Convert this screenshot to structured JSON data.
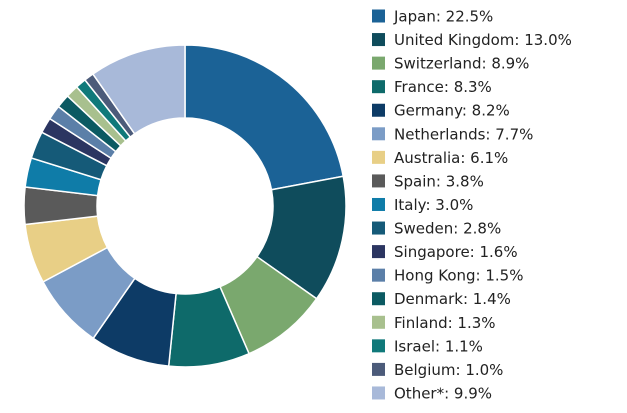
{
  "chart_data": {
    "type": "donut",
    "values": [
      22.5,
      13.0,
      8.9,
      8.3,
      8.2,
      7.7,
      6.1,
      3.8,
      3.0,
      2.8,
      1.6,
      1.5,
      1.4,
      1.3,
      1.1,
      1.0,
      9.9
    ],
    "value_labels": [
      "Japan: 22.5%",
      "United Kingdom: 13.0%",
      "Switzerland: 8.9%",
      "France: 8.3%",
      "Germany: 8.2%",
      "Netherlands: 7.7%",
      "Australia: 6.1%",
      "Spain: 3.8%",
      "Italy: 3.0%",
      "Sweden: 2.8%",
      "Singapore: 1.6%",
      "Hong Kong: 1.5%",
      "Denmark: 1.4%",
      "Finland: 1.3%",
      "Israel: 1.1%",
      "Belgium: 1.0%",
      "Other*: 9.9%"
    ],
    "colors": [
      "#1b6296",
      "#0f4c5c",
      "#7aa86e",
      "#0e6a6a",
      "#0d3b66",
      "#7b9cc6",
      "#e8cf86",
      "#5a5a5a",
      "#0f7ca8",
      "#155a78",
      "#2b3561",
      "#5b7fa8",
      "#0b5a62",
      "#a8c08e",
      "#10797a",
      "#4c5b7a",
      "#a8b9d9"
    ],
    "legend": "right"
  }
}
